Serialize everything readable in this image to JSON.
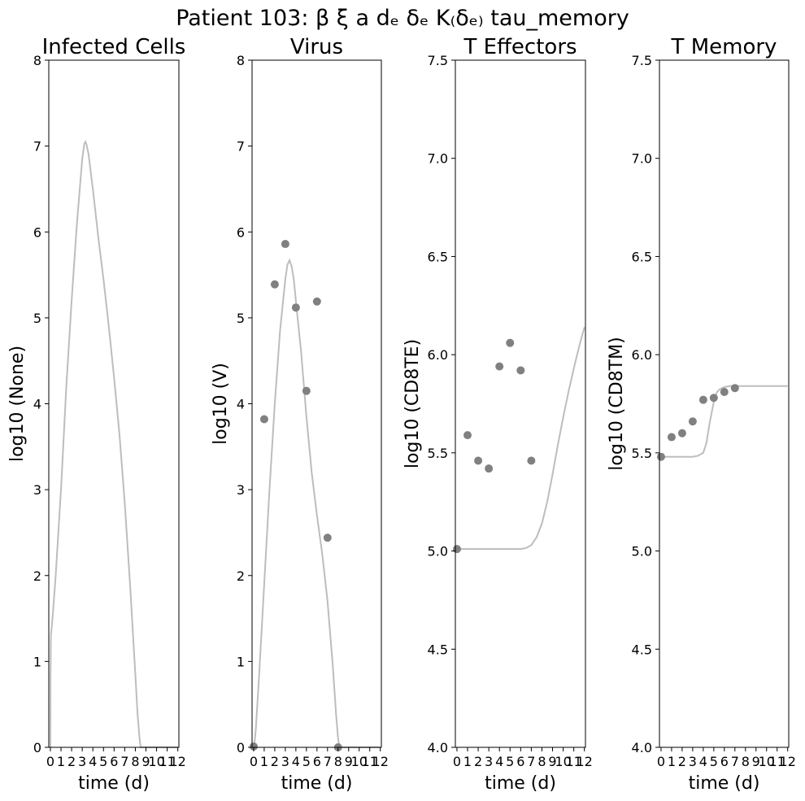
{
  "figure": {
    "suptitle": "Patient 103: β ξ a dₑ δₑ K₍δₑ₎ tau_memory"
  },
  "colors": {
    "curve": "#bdbdbd",
    "points": "#808080",
    "axis": "#000000"
  },
  "chart_data": [
    {
      "type": "line",
      "title": "Infected Cells",
      "xlabel": "time (d)",
      "ylabel": "log10 (None)",
      "xlim": [
        -0.15,
        12.1
      ],
      "ylim": [
        0,
        8
      ],
      "xticks": [
        0,
        1,
        2,
        3,
        4,
        5,
        6,
        7,
        8,
        9,
        10,
        11,
        12
      ],
      "yticks": [
        0,
        1,
        2,
        3,
        4,
        5,
        6,
        7,
        8
      ],
      "ytick_labels": [
        "0",
        "1",
        "2",
        "3",
        "4",
        "5",
        "6",
        "7",
        "8"
      ],
      "series": [
        {
          "kind": "curve",
          "x": [
            0,
            0.01,
            0.05,
            0.2,
            0.5,
            1,
            1.5,
            2,
            2.5,
            3,
            3.2,
            3.3,
            3.4,
            3.6,
            4,
            4.5,
            5,
            5.5,
            6,
            6.5,
            7,
            7.5,
            8,
            8.2,
            8.4,
            8.5,
            8.55,
            9,
            10,
            11,
            12
          ],
          "y": [
            0,
            0.8,
            1.3,
            1.5,
            2.0,
            3.0,
            4.2,
            5.2,
            6.1,
            6.85,
            7.03,
            7.05,
            7.02,
            6.9,
            6.5,
            5.95,
            5.45,
            4.9,
            4.3,
            3.65,
            2.85,
            1.9,
            0.85,
            0.4,
            0.1,
            0,
            0,
            0,
            0,
            0,
            0
          ]
        }
      ]
    },
    {
      "type": "line",
      "title": "Virus",
      "xlabel": "time (d)",
      "ylabel": "log10 (V)",
      "xlim": [
        -0.15,
        12.1
      ],
      "ylim": [
        0,
        8
      ],
      "xticks": [
        0,
        1,
        2,
        3,
        4,
        5,
        6,
        7,
        8,
        9,
        10,
        11,
        12
      ],
      "yticks": [
        0,
        1,
        2,
        3,
        4,
        5,
        6,
        7,
        8
      ],
      "ytick_labels": [
        "0",
        "1",
        "2",
        "3",
        "4",
        "5",
        "6",
        "7",
        "8"
      ],
      "series": [
        {
          "kind": "curve",
          "x": [
            0,
            0.05,
            0.2,
            0.5,
            1,
            1.5,
            2,
            2.5,
            3,
            3.2,
            3.4,
            3.6,
            3.8,
            4,
            4.5,
            5,
            5.5,
            6,
            6.5,
            7,
            7.5,
            7.8,
            8,
            8.15,
            8.3,
            9,
            10,
            11,
            12
          ],
          "y": [
            0,
            0.02,
            0.2,
            0.8,
            1.9,
            3.0,
            4.0,
            4.85,
            5.45,
            5.62,
            5.67,
            5.6,
            5.45,
            5.2,
            4.6,
            3.85,
            3.2,
            2.7,
            2.25,
            1.7,
            0.95,
            0.4,
            0.1,
            0,
            0,
            0,
            0,
            0,
            0
          ]
        },
        {
          "kind": "points",
          "x": [
            0,
            1,
            2,
            3,
            4,
            5,
            6,
            7,
            8
          ],
          "y": [
            0.01,
            3.82,
            5.39,
            5.86,
            5.12,
            4.15,
            5.19,
            2.44,
            0
          ]
        }
      ]
    },
    {
      "type": "line",
      "title": "T Effectors",
      "xlabel": "time (d)",
      "ylabel": "log10 (CD8TE)",
      "xlim": [
        -0.15,
        12.1
      ],
      "ylim": [
        4.0,
        7.5
      ],
      "xticks": [
        0,
        1,
        2,
        3,
        4,
        5,
        6,
        7,
        8,
        9,
        10,
        11,
        12
      ],
      "yticks": [
        4.0,
        4.5,
        5.0,
        5.5,
        6.0,
        6.5,
        7.0,
        7.5
      ],
      "ytick_labels": [
        "4.0",
        "4.5",
        "5.0",
        "5.5",
        "6.0",
        "6.5",
        "7.0",
        "7.5"
      ],
      "series": [
        {
          "kind": "curve",
          "x": [
            0,
            1,
            2,
            3,
            4,
            5,
            6,
            6.5,
            7,
            7.5,
            8,
            8.5,
            9,
            9.5,
            10,
            10.5,
            11,
            11.5,
            12
          ],
          "y": [
            5.01,
            5.01,
            5.01,
            5.01,
            5.01,
            5.01,
            5.01,
            5.015,
            5.03,
            5.07,
            5.14,
            5.25,
            5.39,
            5.54,
            5.68,
            5.81,
            5.93,
            6.04,
            6.14
          ]
        },
        {
          "kind": "points",
          "x": [
            0,
            1,
            2,
            3,
            4,
            5,
            6,
            7
          ],
          "y": [
            5.01,
            5.59,
            5.46,
            5.42,
            5.94,
            6.06,
            5.92,
            5.46
          ]
        }
      ]
    },
    {
      "type": "line",
      "title": "T Memory",
      "xlabel": "time (d)",
      "ylabel": "log10 (CD8TM)",
      "xlim": [
        -0.15,
        12.1
      ],
      "ylim": [
        4.0,
        7.5
      ],
      "xticks": [
        0,
        1,
        2,
        3,
        4,
        5,
        6,
        7,
        8,
        9,
        10,
        11,
        12
      ],
      "yticks": [
        4.0,
        4.5,
        5.0,
        5.5,
        6.0,
        6.5,
        7.0,
        7.5
      ],
      "ytick_labels": [
        "4.0",
        "4.5",
        "5.0",
        "5.5",
        "6.0",
        "6.5",
        "7.0",
        "7.5"
      ],
      "series": [
        {
          "kind": "curve",
          "x": [
            0,
            1,
            2,
            3,
            3.5,
            4,
            4.3,
            4.6,
            5,
            5.3,
            5.6,
            6,
            6.5,
            7,
            8,
            9,
            10,
            11,
            12
          ],
          "y": [
            5.48,
            5.48,
            5.48,
            5.48,
            5.485,
            5.5,
            5.55,
            5.65,
            5.76,
            5.81,
            5.825,
            5.835,
            5.84,
            5.84,
            5.84,
            5.84,
            5.84,
            5.84,
            5.84
          ]
        },
        {
          "kind": "points",
          "x": [
            0,
            1,
            2,
            3,
            4,
            5,
            6,
            7
          ],
          "y": [
            5.48,
            5.58,
            5.6,
            5.66,
            5.77,
            5.78,
            5.81,
            5.83
          ]
        }
      ]
    }
  ]
}
